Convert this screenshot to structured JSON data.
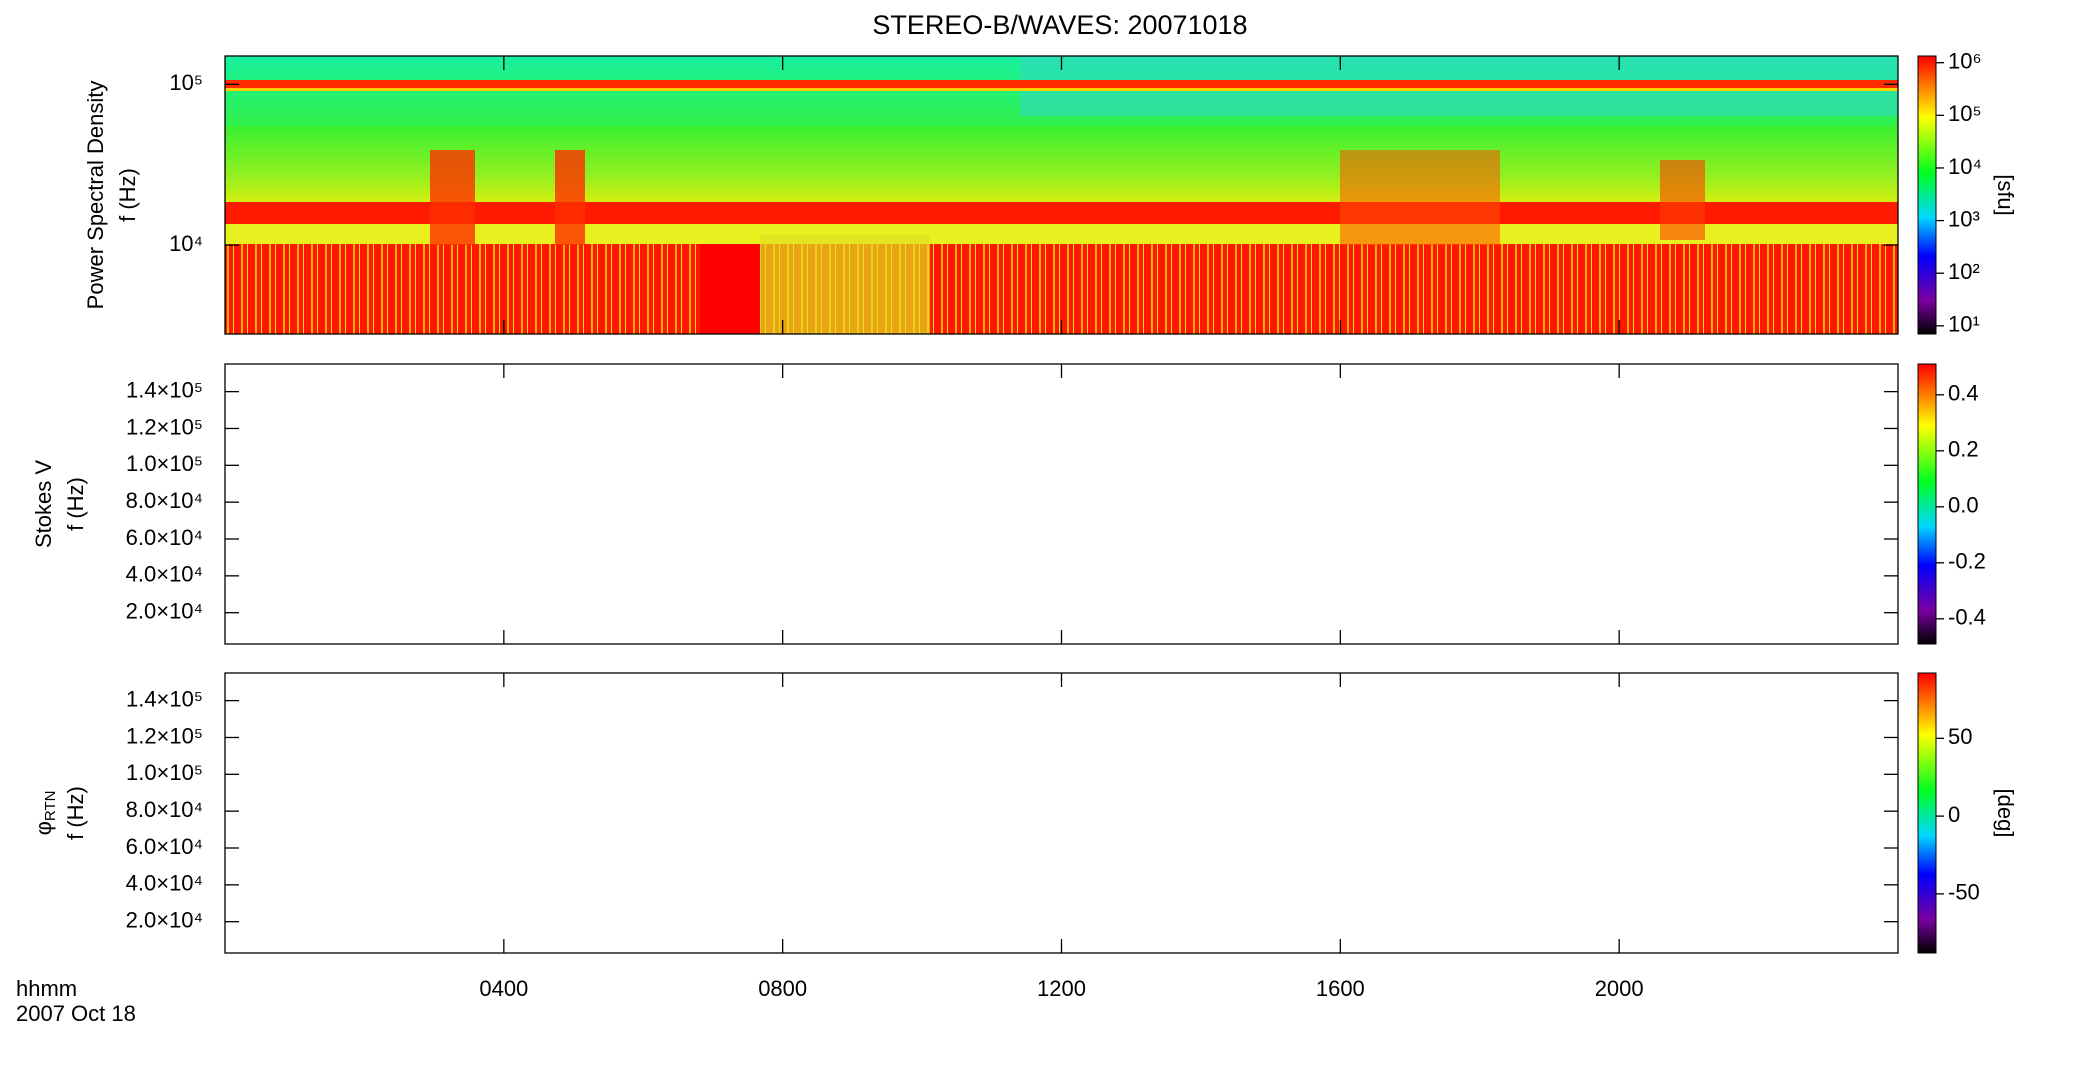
{
  "chart_data": {
    "type": "heatmap",
    "title": "STEREO-B/WAVES: 20071018",
    "xlim": [
      0,
      24
    ],
    "xticks": [
      {
        "value": 4,
        "label": "0400"
      },
      {
        "value": 8,
        "label": "0800"
      },
      {
        "value": 12,
        "label": "1200"
      },
      {
        "value": 16,
        "label": "1600"
      },
      {
        "value": 20,
        "label": "2000"
      }
    ],
    "xlabel": [
      "hhmm",
      "2007 Oct 18"
    ],
    "panels": [
      {
        "ylabel": [
          [
            "Power Spectral Density"
          ],
          [
            "f (Hz)"
          ]
        ],
        "log_y": true,
        "ylim": [
          2800,
          150000
        ],
        "yticks": [
          {
            "value": 10000,
            "label": "10⁴"
          },
          {
            "value": 100000,
            "label": "10⁵"
          }
        ],
        "colorbar": {
          "log": true,
          "lim": [
            7,
            1340000
          ],
          "label": "[sfu]",
          "ticks": [
            {
              "value": 10,
              "label": "10¹"
            },
            {
              "value": 100,
              "label": "10²"
            },
            {
              "value": 1000,
              "label": "10³"
            },
            {
              "value": 10000,
              "label": "10⁴"
            },
            {
              "value": 100000,
              "label": "10⁵"
            },
            {
              "value": 1000000,
              "label": "10⁶"
            }
          ]
        }
      },
      {
        "ylabel": [
          [
            "Stokes V"
          ],
          [
            "f (Hz)"
          ]
        ],
        "log_y": false,
        "ylim": [
          3000,
          155000
        ],
        "yticks": [
          {
            "value": 20000,
            "label": "2.0×10⁴"
          },
          {
            "value": 40000,
            "label": "4.0×10⁴"
          },
          {
            "value": 60000,
            "label": "6.0×10⁴"
          },
          {
            "value": 80000,
            "label": "8.0×10⁴"
          },
          {
            "value": 100000,
            "label": "1.0×10⁵"
          },
          {
            "value": 120000,
            "label": "1.2×10⁵"
          },
          {
            "value": 140000,
            "label": "1.4×10⁵"
          }
        ],
        "colorbar": {
          "log": false,
          "lim": [
            -0.49,
            0.51
          ],
          "ticks": [
            -0.4,
            -0.2,
            {
              "value": 0,
              "label": "0.0"
            },
            0.2,
            0.4
          ]
        }
      },
      {
        "ylabel": [
          [
            "φ",
            "RTN"
          ],
          [
            "f (Hz)"
          ]
        ],
        "log_y": false,
        "ylim": [
          3000,
          155000
        ],
        "yticks": [
          {
            "value": 20000,
            "label": "2.0×10⁴"
          },
          {
            "value": 40000,
            "label": "4.0×10⁴"
          },
          {
            "value": 60000,
            "label": "6.0×10⁴"
          },
          {
            "value": 80000,
            "label": "8.0×10⁴"
          },
          {
            "value": 100000,
            "label": "1.0×10⁵"
          },
          {
            "value": 120000,
            "label": "1.2×10⁵"
          },
          {
            "value": 140000,
            "label": "1.4×10⁵"
          }
        ],
        "colorbar": {
          "log": false,
          "lim": [
            -88,
            92
          ],
          "label": "[deg]",
          "ticks": [
            -50,
            0,
            50
          ]
        }
      }
    ]
  }
}
